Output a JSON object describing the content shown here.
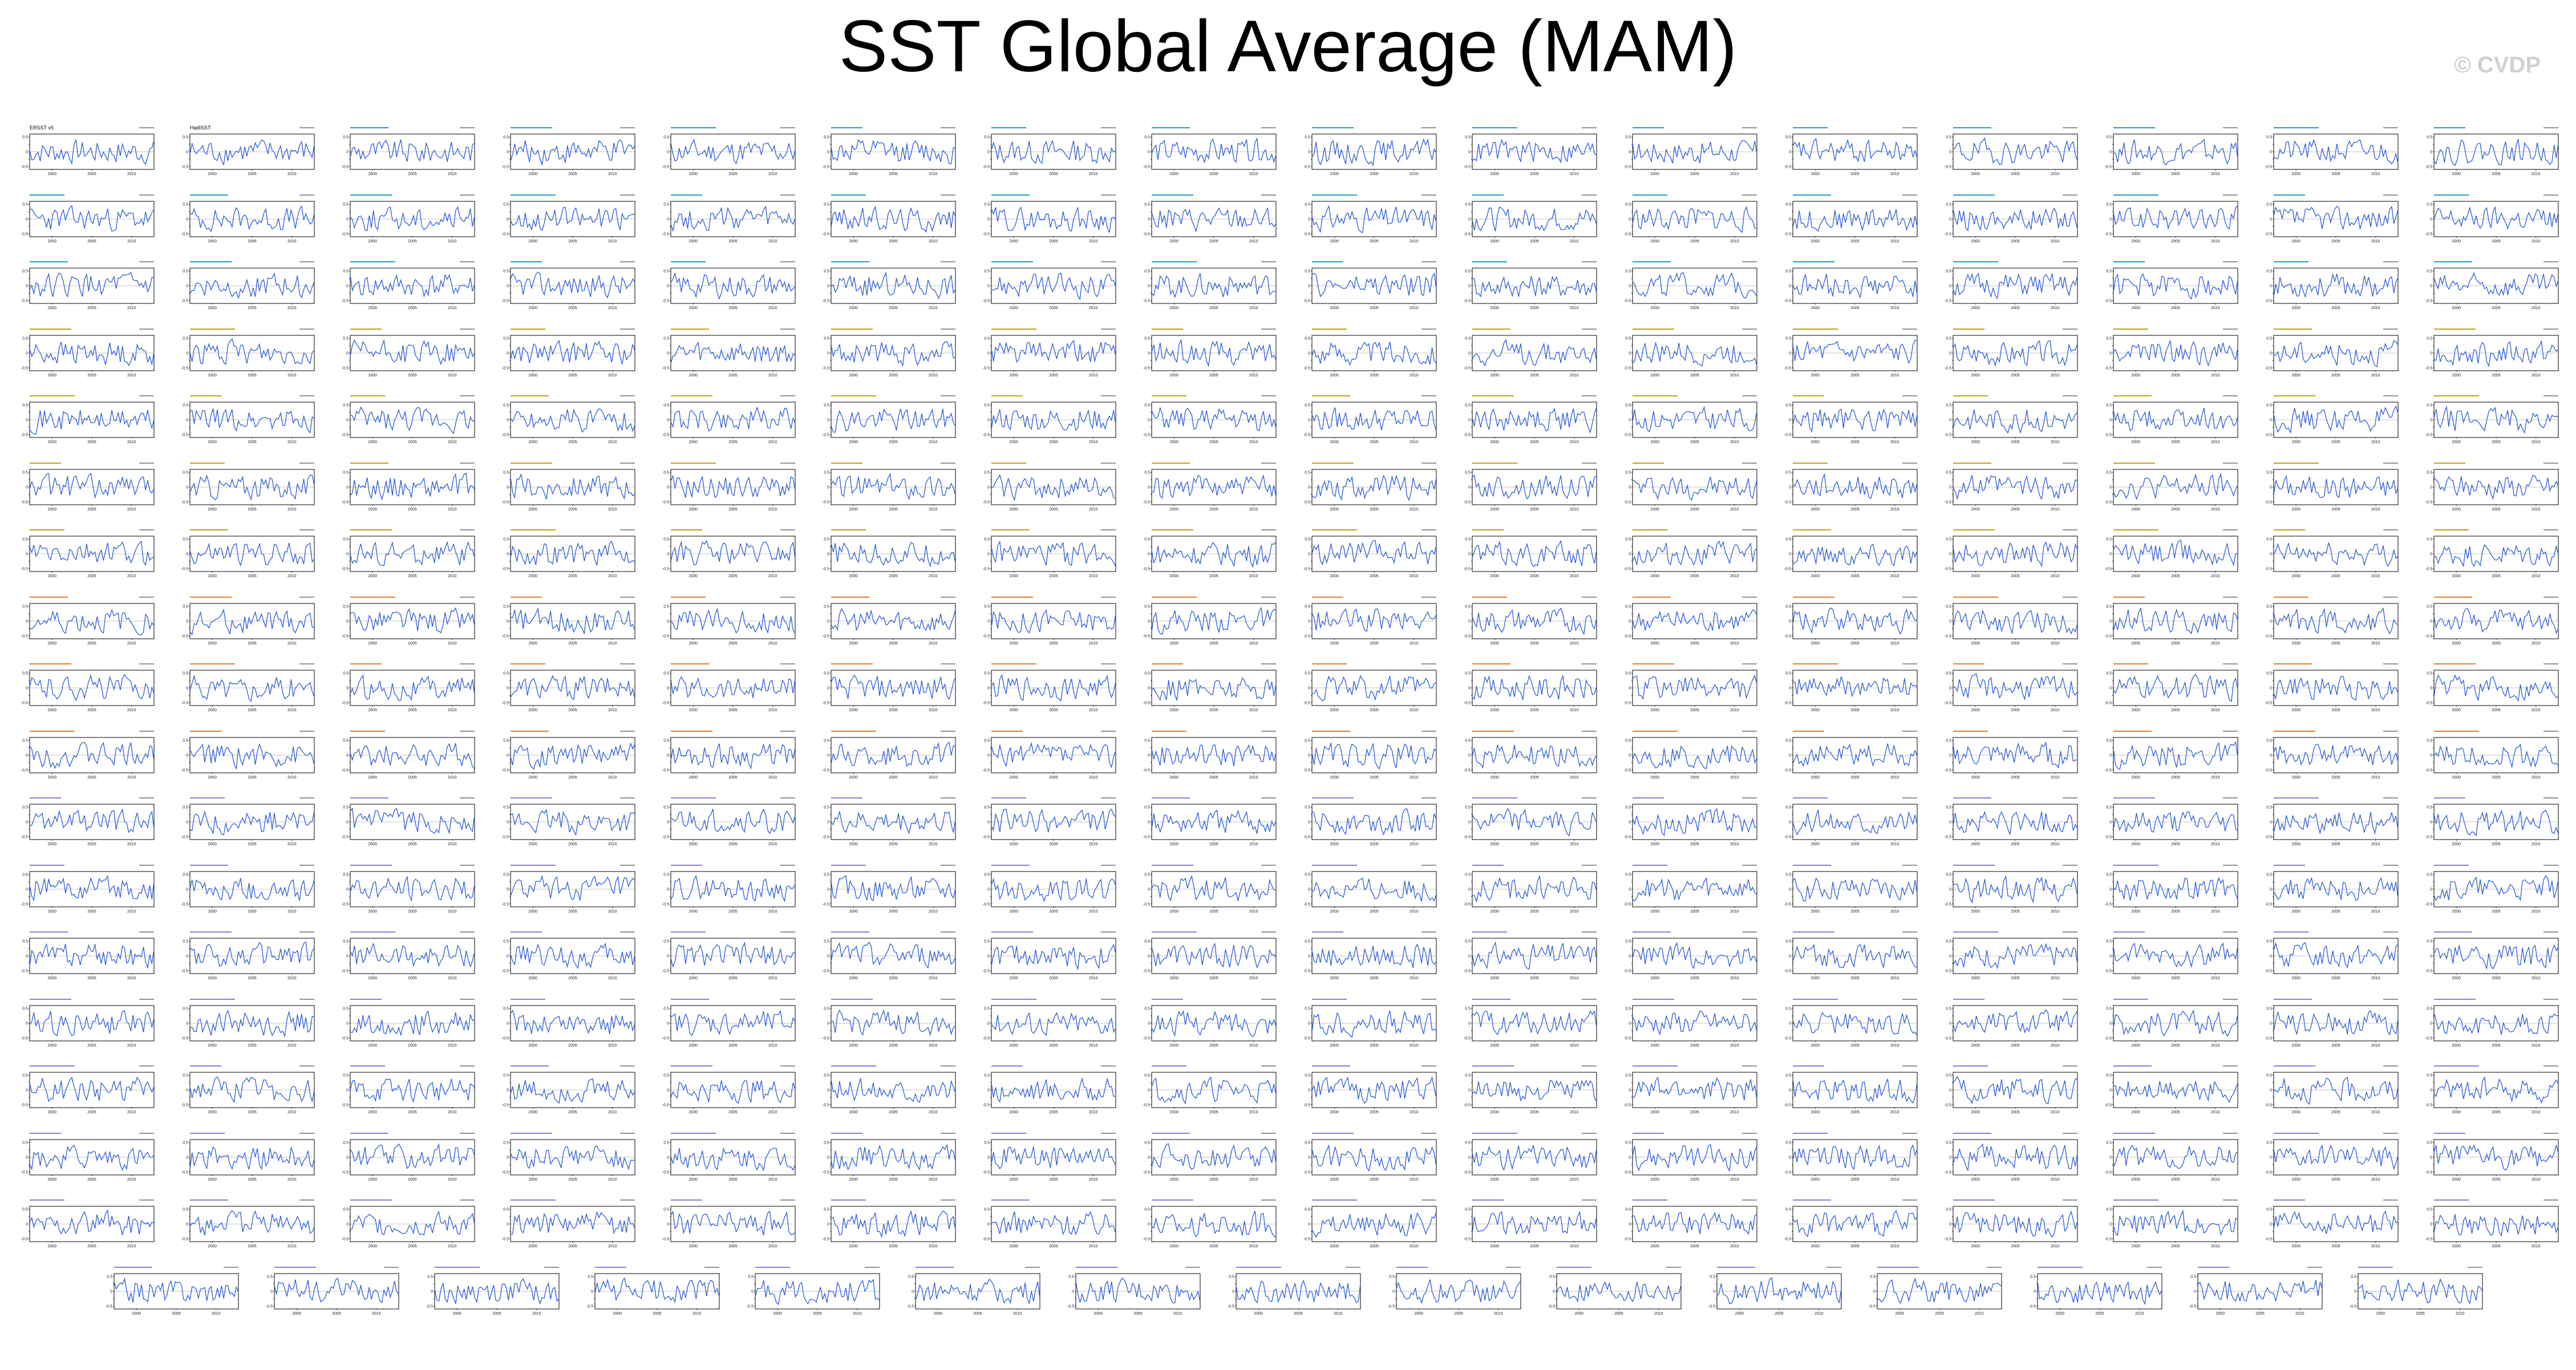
{
  "page": {
    "title": "SST Global Average (MAM)",
    "watermark": "© CVDP"
  },
  "colors": {
    "series": "#2b5bd7",
    "axis": "#000000",
    "zero_line": "#8a8a8a",
    "title_obs": "#000000",
    "title_model_a": "#1f9fbf",
    "title_model_b": "#c0a020",
    "title_model_c": "#e08030",
    "title_model_d": "#8a7fd0"
  },
  "chart_data": {
    "type": "line",
    "layout": "small-multiples",
    "rows": 18,
    "full_row_columns": 16,
    "last_row_columns": 15,
    "panel_count": 287,
    "x_tick_labels": [
      "2000",
      "2005",
      "2010"
    ],
    "y_tick_labels": [
      "0.5",
      "0.25",
      "0",
      "-0.25",
      "-0.5"
    ],
    "ylim": [
      -0.6,
      0.6
    ],
    "first_panel_titles": [
      "ERSST v5",
      "HadISST"
    ],
    "note_on_panels": "Each panel shows a year-to-year SST anomaly time series; exact per-panel values are illegible at this resolution."
  }
}
